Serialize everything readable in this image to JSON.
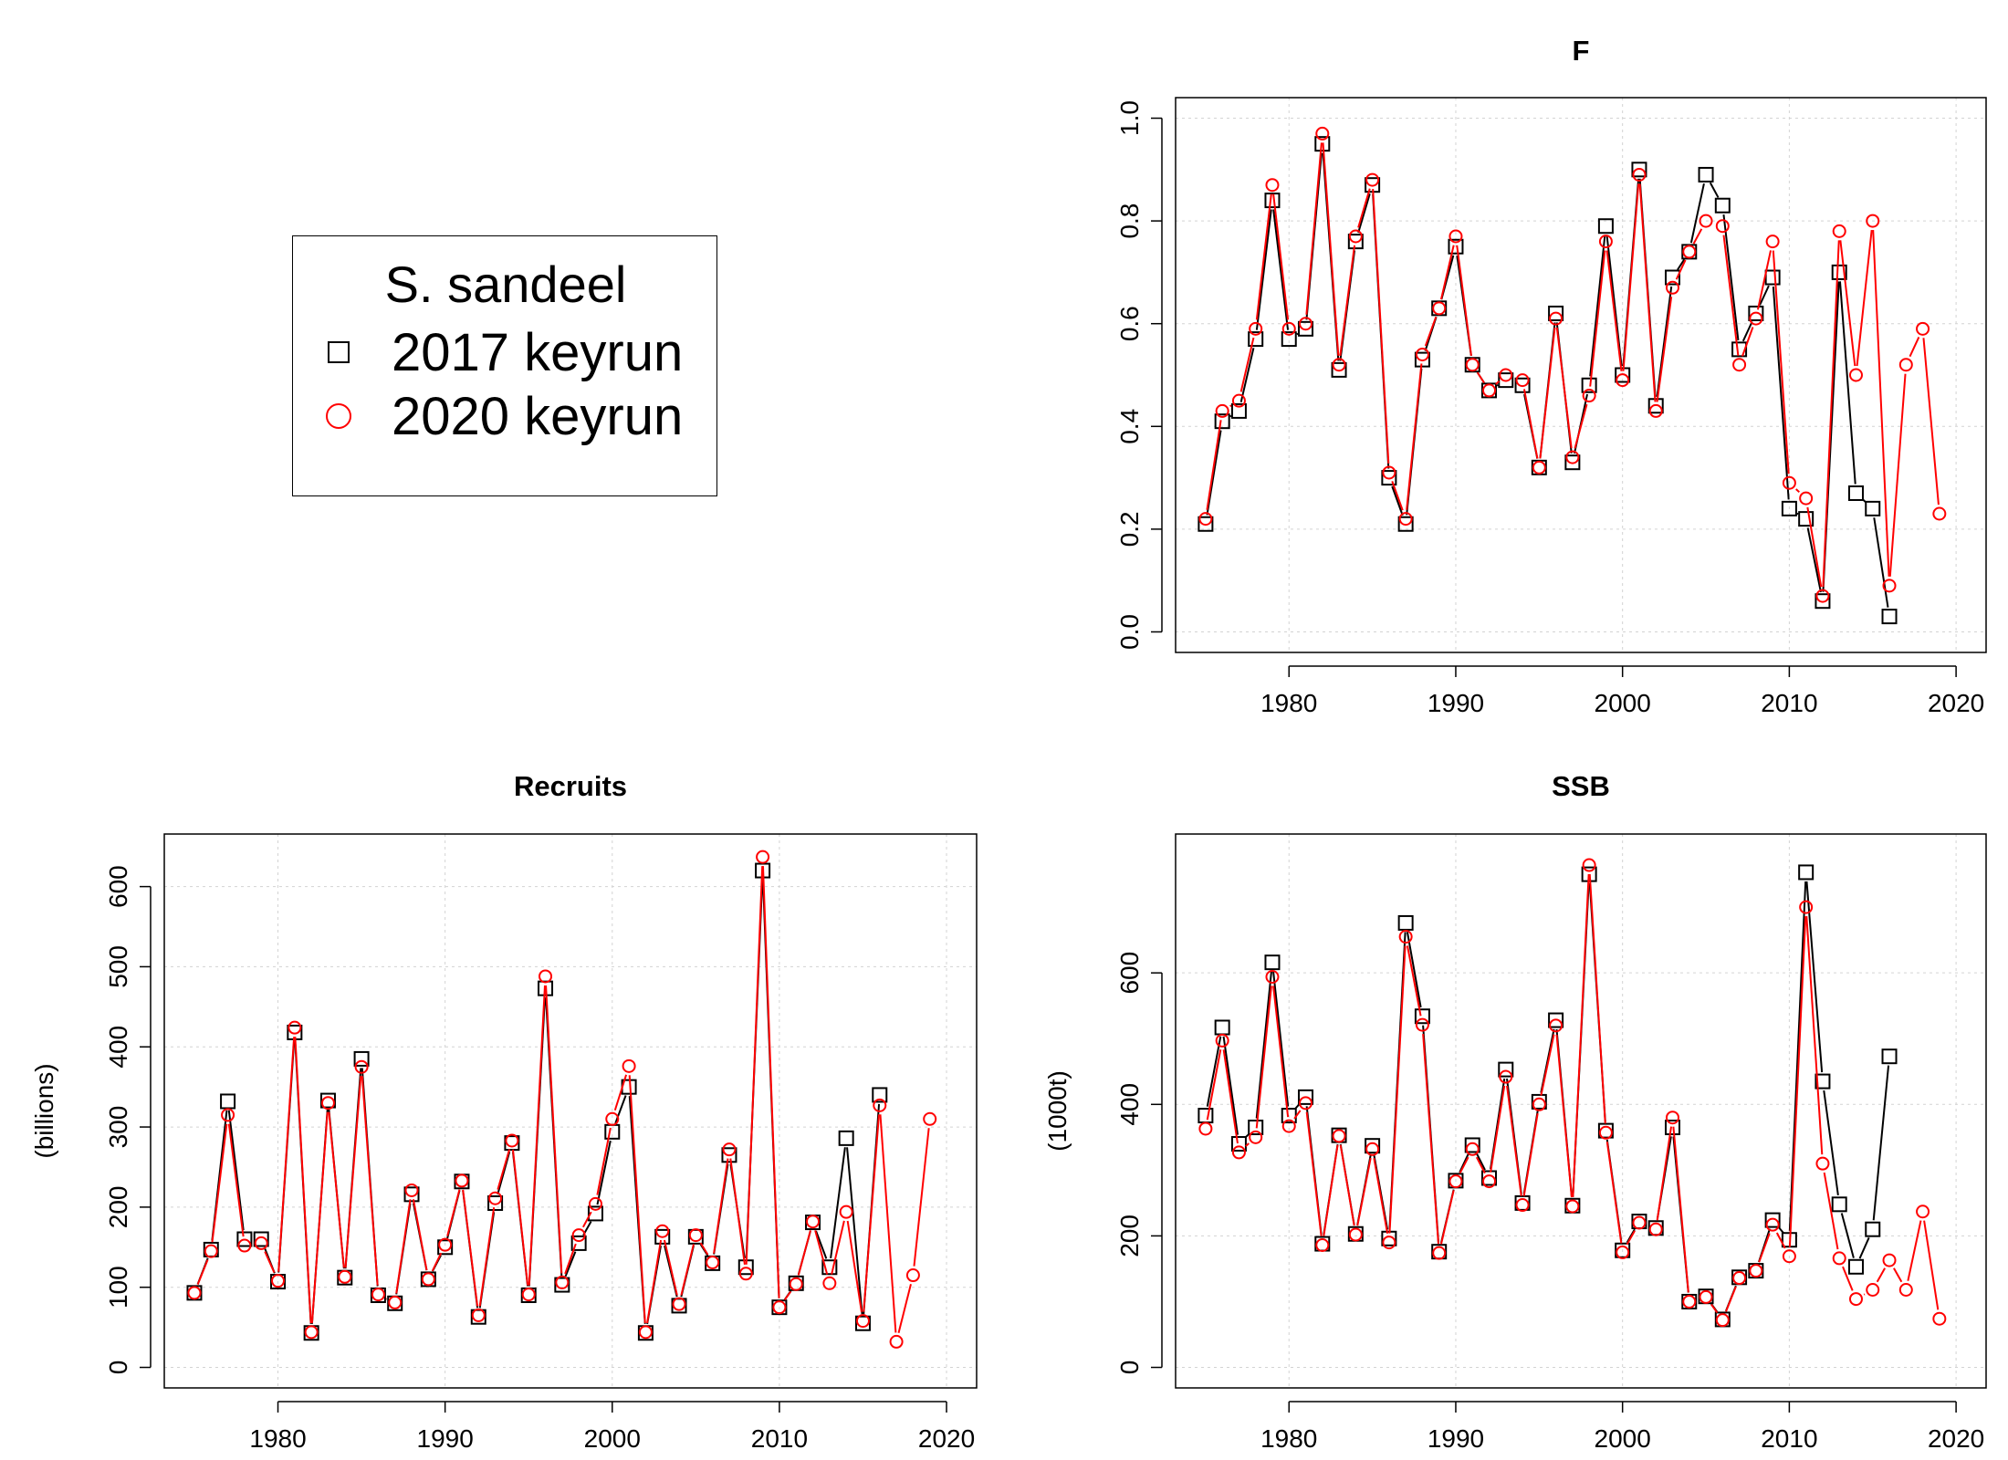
{
  "legend": {
    "title": "S. sandeel",
    "entries": [
      {
        "label": "2017 keyrun",
        "marker": "square",
        "color": "#000000"
      },
      {
        "label": "2020 keyrun",
        "marker": "circle",
        "color": "#ff0000"
      }
    ]
  },
  "colors": {
    "keyrun_2017": "#000000",
    "keyrun_2020": "#ff0000",
    "grid": "#d3d3d3"
  },
  "chart_data": [
    {
      "id": "F",
      "type": "line",
      "title": "F",
      "xlabel": "",
      "ylabel": "",
      "xlim": [
        1975,
        2020
      ],
      "ylim": [
        0.0,
        1.0
      ],
      "xticks": [
        1980,
        1990,
        2000,
        2010,
        2020
      ],
      "yticks": [
        0.0,
        0.2,
        0.4,
        0.6,
        0.8,
        1.0
      ],
      "ytick_labels": [
        "0.0",
        "0.2",
        "0.4",
        "0.6",
        "0.8",
        "1.0"
      ],
      "grid": true,
      "series": [
        {
          "name": "2017 keyrun",
          "marker": "square",
          "color": "#000000",
          "x": [
            1975,
            1976,
            1977,
            1978,
            1979,
            1980,
            1981,
            1982,
            1983,
            1984,
            1985,
            1986,
            1987,
            1988,
            1989,
            1990,
            1991,
            1992,
            1993,
            1994,
            1995,
            1996,
            1997,
            1998,
            1999,
            2000,
            2001,
            2002,
            2003,
            2004,
            2005,
            2006,
            2007,
            2008,
            2009,
            2010,
            2011,
            2012,
            2013,
            2014,
            2015,
            2016
          ],
          "y": [
            0.21,
            0.41,
            0.43,
            0.57,
            0.84,
            0.57,
            0.59,
            0.95,
            0.51,
            0.76,
            0.87,
            0.3,
            0.21,
            0.53,
            0.63,
            0.75,
            0.52,
            0.47,
            0.49,
            0.48,
            0.32,
            0.62,
            0.33,
            0.48,
            0.79,
            0.5,
            0.9,
            0.44,
            0.69,
            0.74,
            0.89,
            0.83,
            0.55,
            0.62,
            0.69,
            0.24,
            0.22,
            0.06,
            0.7,
            0.27,
            0.24,
            0.03
          ]
        },
        {
          "name": "2020 keyrun",
          "marker": "circle",
          "color": "#ff0000",
          "x": [
            1975,
            1976,
            1977,
            1978,
            1979,
            1980,
            1981,
            1982,
            1983,
            1984,
            1985,
            1986,
            1987,
            1988,
            1989,
            1990,
            1991,
            1992,
            1993,
            1994,
            1995,
            1996,
            1997,
            1998,
            1999,
            2000,
            2001,
            2002,
            2003,
            2004,
            2005,
            2006,
            2007,
            2008,
            2009,
            2010,
            2011,
            2012,
            2013,
            2014,
            2015,
            2016,
            2017,
            2018,
            2019
          ],
          "y": [
            0.22,
            0.43,
            0.45,
            0.59,
            0.87,
            0.59,
            0.6,
            0.97,
            0.52,
            0.77,
            0.88,
            0.31,
            0.22,
            0.54,
            0.63,
            0.77,
            0.52,
            0.47,
            0.5,
            0.49,
            0.32,
            0.61,
            0.34,
            0.46,
            0.76,
            0.49,
            0.89,
            0.43,
            0.67,
            0.74,
            0.8,
            0.79,
            0.52,
            0.61,
            0.76,
            0.29,
            0.26,
            0.07,
            0.78,
            0.5,
            0.8,
            0.09,
            0.52,
            0.59,
            0.23
          ]
        }
      ]
    },
    {
      "id": "Recruits",
      "type": "line",
      "title": "Recruits",
      "xlabel": "",
      "ylabel": "(billions)",
      "xlim": [
        1975,
        2020
      ],
      "ylim": [
        0,
        640
      ],
      "xticks": [
        1980,
        1990,
        2000,
        2010,
        2020
      ],
      "yticks": [
        0,
        100,
        200,
        300,
        400,
        500,
        600
      ],
      "ytick_labels": [
        "0",
        "100",
        "200",
        "300",
        "400",
        "500",
        "600"
      ],
      "grid": true,
      "series": [
        {
          "name": "2017 keyrun",
          "marker": "square",
          "color": "#000000",
          "x": [
            1975,
            1976,
            1977,
            1978,
            1979,
            1980,
            1981,
            1982,
            1983,
            1984,
            1985,
            1986,
            1987,
            1988,
            1989,
            1990,
            1991,
            1992,
            1993,
            1994,
            1995,
            1996,
            1997,
            1998,
            1999,
            2000,
            2001,
            2002,
            2003,
            2004,
            2005,
            2006,
            2007,
            2008,
            2009,
            2010,
            2011,
            2012,
            2013,
            2014,
            2015,
            2016
          ],
          "y": [
            93,
            147,
            332,
            160,
            160,
            107,
            418,
            43,
            333,
            112,
            385,
            90,
            80,
            216,
            110,
            150,
            232,
            63,
            205,
            280,
            90,
            473,
            103,
            155,
            192,
            294,
            350,
            43,
            163,
            77,
            163,
            130,
            265,
            125,
            620,
            75,
            105,
            181,
            125,
            286,
            55,
            340
          ]
        },
        {
          "name": "2020 keyrun",
          "marker": "circle",
          "color": "#ff0000",
          "x": [
            1975,
            1976,
            1977,
            1978,
            1979,
            1980,
            1981,
            1982,
            1983,
            1984,
            1985,
            1986,
            1987,
            1988,
            1989,
            1990,
            1991,
            1992,
            1993,
            1994,
            1995,
            1996,
            1997,
            1998,
            1999,
            2000,
            2001,
            2002,
            2003,
            2004,
            2005,
            2006,
            2007,
            2008,
            2009,
            2010,
            2011,
            2012,
            2013,
            2014,
            2015,
            2016,
            2017,
            2018,
            2019
          ],
          "y": [
            93,
            145,
            315,
            152,
            155,
            108,
            424,
            44,
            330,
            113,
            375,
            91,
            81,
            221,
            110,
            153,
            233,
            65,
            211,
            283,
            91,
            488,
            106,
            165,
            204,
            310,
            376,
            44,
            170,
            79,
            165,
            131,
            272,
            117,
            637,
            75,
            104,
            182,
            105,
            194,
            58,
            327,
            32,
            115,
            310
          ]
        }
      ]
    },
    {
      "id": "SSB",
      "type": "line",
      "title": "SSB",
      "xlabel": "",
      "ylabel": "(1000t)",
      "xlim": [
        1975,
        2020
      ],
      "ylim": [
        0,
        780
      ],
      "xticks": [
        1980,
        1990,
        2000,
        2010,
        2020
      ],
      "yticks": [
        0,
        200,
        400,
        600
      ],
      "ytick_labels": [
        "0",
        "200",
        "400",
        "600"
      ],
      "grid": true,
      "series": [
        {
          "name": "2017 keyrun",
          "marker": "square",
          "color": "#000000",
          "x": [
            1975,
            1976,
            1977,
            1978,
            1979,
            1980,
            1981,
            1982,
            1983,
            1984,
            1985,
            1986,
            1987,
            1988,
            1989,
            1990,
            1991,
            1992,
            1993,
            1994,
            1995,
            1996,
            1997,
            1998,
            1999,
            2000,
            2001,
            2002,
            2003,
            2004,
            2005,
            2006,
            2007,
            2008,
            2009,
            2010,
            2011,
            2012,
            2013,
            2014,
            2015,
            2016
          ],
          "y": [
            383,
            517,
            340,
            365,
            616,
            383,
            411,
            188,
            353,
            203,
            337,
            196,
            676,
            534,
            176,
            284,
            338,
            288,
            453,
            250,
            404,
            528,
            246,
            750,
            360,
            178,
            222,
            212,
            365,
            100,
            108,
            73,
            137,
            147,
            224,
            194,
            753,
            435,
            248,
            153,
            210,
            473
          ]
        },
        {
          "name": "2020 keyrun",
          "marker": "circle",
          "color": "#ff0000",
          "x": [
            1975,
            1976,
            1977,
            1978,
            1979,
            1980,
            1981,
            1982,
            1983,
            1984,
            1985,
            1986,
            1987,
            1988,
            1989,
            1990,
            1991,
            1992,
            1993,
            1994,
            1995,
            1996,
            1997,
            1998,
            1999,
            2000,
            2001,
            2002,
            2003,
            2004,
            2005,
            2006,
            2007,
            2008,
            2009,
            2010,
            2011,
            2012,
            2013,
            2014,
            2015,
            2016,
            2017,
            2018,
            2019
          ],
          "y": [
            363,
            497,
            327,
            350,
            594,
            367,
            402,
            186,
            352,
            202,
            332,
            190,
            655,
            521,
            174,
            283,
            332,
            283,
            442,
            247,
            400,
            520,
            245,
            764,
            357,
            175,
            220,
            210,
            380,
            100,
            107,
            72,
            136,
            147,
            217,
            169,
            700,
            310,
            166,
            104,
            118,
            163,
            118,
            237,
            74
          ]
        }
      ]
    }
  ]
}
